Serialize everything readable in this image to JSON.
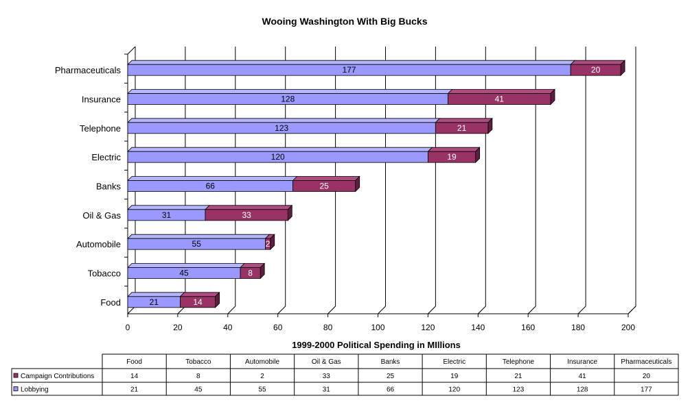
{
  "chart_data": {
    "type": "bar",
    "orientation": "horizontal",
    "stacked": true,
    "title": "Wooing Washington With Big Bucks",
    "xlabel": "1999-2000 Political Spending in MIllions",
    "ylabel": "",
    "xlim": [
      0,
      200
    ],
    "xticks": [
      0,
      20,
      40,
      60,
      80,
      100,
      120,
      140,
      160,
      180,
      200
    ],
    "grid": true,
    "categories": [
      "Food",
      "Tobacco",
      "Automobile",
      "Oil & Gas",
      "Banks",
      "Electric",
      "Telephone",
      "Insurance",
      "Pharmaceuticals"
    ],
    "series": [
      {
        "name": "Lobbying",
        "color": "#9999ff",
        "values": [
          21,
          45,
          55,
          31,
          66,
          120,
          123,
          128,
          177
        ]
      },
      {
        "name": "Campaign Contributions",
        "color": "#993366",
        "values": [
          14,
          8,
          2,
          33,
          25,
          19,
          21,
          41,
          20
        ]
      }
    ],
    "data_table": true
  }
}
